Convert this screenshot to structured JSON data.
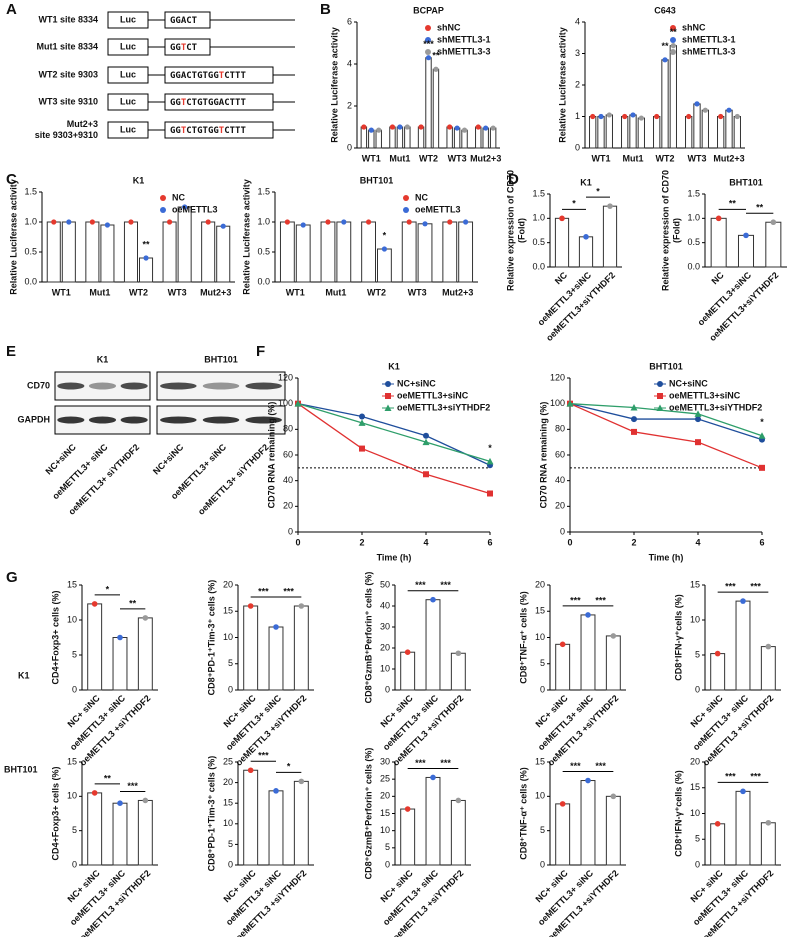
{
  "panel_labels": [
    "A",
    "B",
    "C",
    "D",
    "E",
    "F",
    "G"
  ],
  "constructs": {
    "box": "Luc",
    "highlight_color": "#e5392e",
    "rows": [
      {
        "label": [
          "WT1 site 8334"
        ],
        "sequence": [
          "GGACT"
        ],
        "mutated": []
      },
      {
        "label": [
          "Mut1 site 8334"
        ],
        "sequence": [
          "GG",
          "T",
          "CT"
        ],
        "mutated": [
          1
        ]
      },
      {
        "label": [
          "WT2 site 9303"
        ],
        "sequence": [
          "GGACTGTGG",
          "T",
          "CTTT"
        ],
        "mutated": [
          1
        ]
      },
      {
        "label": [
          "WT3 site 9310"
        ],
        "sequence": [
          "GG",
          "T",
          "CTGTGGACTTT"
        ],
        "mutated": [
          1
        ]
      },
      {
        "label": [
          "Mut2+3",
          "site 9303+9310"
        ],
        "sequence": [
          "GG",
          "T",
          "CTGTGG",
          "T",
          "CTTT"
        ],
        "mutated": [
          1,
          3
        ]
      }
    ]
  },
  "western_blot": {
    "titles": [
      "K1",
      "BHT101"
    ],
    "rows": [
      "CD70",
      "GAPDH"
    ],
    "lanes": [
      "NC+siNC",
      "oeMETTL3+ siNC",
      "oeMETTL3+ siYTHDF2"
    ]
  },
  "row_labels": [
    "K1",
    "BHT101"
  ],
  "chart_data": [
    {
      "type": "bar",
      "title": "BCPAP",
      "ylabel": [
        "Relative Luciferase activity"
      ],
      "categories": [
        "WT1",
        "Mut1",
        "WT2",
        "WT3",
        "Mut2+3"
      ],
      "series": [
        {
          "name": "shNC",
          "color": "#e5392e",
          "values": [
            1.0,
            1.0,
            1.0,
            1.0,
            1.0
          ]
        },
        {
          "name": "shMETTL3-1",
          "color": "#3b6bd6",
          "values": [
            0.85,
            1.0,
            4.3,
            0.95,
            0.95
          ]
        },
        {
          "name": "shMETTL3-3",
          "color": "#9a9a9a",
          "values": [
            0.85,
            1.0,
            3.75,
            0.85,
            0.95
          ]
        }
      ],
      "ylim": [
        0,
        6
      ],
      "yticks": [
        0,
        2,
        4,
        6
      ],
      "stars": [
        {
          "text": "***",
          "category": 2,
          "series": 1
        },
        {
          "text": "**",
          "category": 2,
          "series": 2
        }
      ]
    },
    {
      "type": "bar",
      "title": "C643",
      "ylabel": [
        "Relative Luciferase activity"
      ],
      "categories": [
        "WT1",
        "Mut1",
        "WT2",
        "WT3",
        "Mut2+3"
      ],
      "series": [
        {
          "name": "shNC",
          "color": "#e5392e",
          "values": [
            1.0,
            1.0,
            1.0,
            1.0,
            1.0
          ]
        },
        {
          "name": "shMETTL3-1",
          "color": "#3b6bd6",
          "values": [
            1.0,
            1.05,
            2.8,
            1.4,
            1.2
          ]
        },
        {
          "name": "shMETTL3-3",
          "color": "#9a9a9a",
          "values": [
            1.05,
            0.95,
            3.25,
            1.2,
            1.0
          ]
        }
      ],
      "ylim": [
        0,
        4
      ],
      "yticks": [
        0,
        1,
        2,
        3,
        4
      ],
      "stars": [
        {
          "text": "**",
          "category": 2,
          "series": 1
        },
        {
          "text": "**",
          "category": 2,
          "series": 2
        }
      ]
    },
    {
      "type": "bar",
      "title": "K1",
      "ylabel": [
        "Relative Luciferase activity"
      ],
      "categories": [
        "WT1",
        "Mut1",
        "WT2",
        "WT3",
        "Mut2+3"
      ],
      "series": [
        {
          "name": "NC",
          "color": "#e5392e",
          "values": [
            1.0,
            1.0,
            1.0,
            1.0,
            1.0
          ]
        },
        {
          "name": "oeMETTL3",
          "color": "#3b6bd6",
          "values": [
            1.0,
            0.95,
            0.4,
            1.25,
            0.93
          ]
        }
      ],
      "ylim": [
        0,
        1.5
      ],
      "yticks": [
        {
          "value": 0,
          "label": "0.0"
        },
        {
          "value": 0.5,
          "label": "0.5"
        },
        {
          "value": 1,
          "label": "1.0"
        },
        {
          "value": 1.5,
          "label": "1.5"
        }
      ],
      "stars": [
        {
          "text": "**",
          "category": 2,
          "series": 1
        }
      ]
    },
    {
      "type": "bar",
      "title": "BHT101",
      "ylabel": [
        "Relative Luciferase activity"
      ],
      "categories": [
        "WT1",
        "Mut1",
        "WT2",
        "WT3",
        "Mut2+3"
      ],
      "series": [
        {
          "name": "NC",
          "color": "#e5392e",
          "values": [
            1.0,
            1.0,
            1.0,
            1.0,
            1.0
          ]
        },
        {
          "name": "oeMETTL3",
          "color": "#3b6bd6",
          "values": [
            0.95,
            1.0,
            0.55,
            0.97,
            1.0
          ]
        }
      ],
      "ylim": [
        0,
        1.5
      ],
      "yticks": [
        {
          "value": 0,
          "label": "0.0"
        },
        {
          "value": 0.5,
          "label": "0.5"
        },
        {
          "value": 1,
          "label": "1.0"
        },
        {
          "value": 1.5,
          "label": "1.5"
        }
      ],
      "stars": [
        {
          "text": "*",
          "category": 2,
          "series": 1
        }
      ]
    },
    {
      "type": "bar",
      "title": "K1",
      "ylabel": [
        "Relative expression of CD70",
        "(Fold)"
      ],
      "categories": [
        "NC",
        "oeMETTL3+siNC",
        "oeMETTL3+siYTHDF2"
      ],
      "values": [
        1.0,
        0.62,
        1.25
      ],
      "colors": [
        "#e5392e",
        "#3b6bd6",
        "#9a9a9a"
      ],
      "ylim": [
        0,
        1.5
      ],
      "yticks": [
        {
          "value": 0,
          "label": "0.0"
        },
        {
          "value": 0.5,
          "label": "0.5"
        },
        {
          "value": 1,
          "label": "1.0"
        },
        {
          "value": 1.5,
          "label": "1.5"
        }
      ],
      "brackets": [
        {
          "text": "*",
          "from": 0,
          "to": 1
        },
        {
          "text": "*",
          "from": 1,
          "to": 2
        }
      ]
    },
    {
      "type": "bar",
      "title": "BHT101",
      "ylabel": [
        "Relative expression of CD70",
        "(Fold)"
      ],
      "categories": [
        "NC",
        "oeMETTL3+siNC",
        "oeMETTL3+siYTHDF2"
      ],
      "values": [
        1.0,
        0.65,
        0.92
      ],
      "colors": [
        "#e5392e",
        "#3b6bd6",
        "#9a9a9a"
      ],
      "ylim": [
        0,
        1.5
      ],
      "yticks": [
        {
          "value": 0,
          "label": "0.0"
        },
        {
          "value": 0.5,
          "label": "0.5"
        },
        {
          "value": 1,
          "label": "1.0"
        },
        {
          "value": 1.5,
          "label": "1.5"
        }
      ],
      "brackets": [
        {
          "text": "**",
          "from": 0,
          "to": 1
        },
        {
          "text": "**",
          "from": 1,
          "to": 2
        }
      ]
    },
    {
      "type": "line",
      "title": "K1",
      "xlabel": "Time (h)",
      "ylabel": [
        "CD70 RNA remaining (%)"
      ],
      "x": [
        0,
        2,
        4,
        6
      ],
      "series": [
        {
          "name": "NC+siNC",
          "color": "#1f4e9c",
          "values": [
            100,
            90,
            75,
            52
          ]
        },
        {
          "name": "oeMETTL3+siNC",
          "color": "#e03131",
          "values": [
            100,
            65,
            45,
            30
          ]
        },
        {
          "name": "oeMETTL3+siYTHDF2",
          "color": "#2e9e6a",
          "values": [
            100,
            85,
            70,
            55
          ]
        }
      ],
      "xlim": [
        0,
        6
      ],
      "xticks": [
        0,
        2,
        4,
        6
      ],
      "ylim": [
        0,
        120
      ],
      "yticks": [
        0,
        20,
        40,
        60,
        80,
        100,
        120
      ],
      "reference_line": 50,
      "stars": [
        {
          "text": "*",
          "x": 6
        }
      ]
    },
    {
      "type": "line",
      "title": "BHT101",
      "xlabel": "Time (h)",
      "ylabel": [
        "CD70 RNA remaining (%)"
      ],
      "x": [
        0,
        2,
        4,
        6
      ],
      "series": [
        {
          "name": "NC+siNC",
          "color": "#1f4e9c",
          "values": [
            100,
            88,
            88,
            72
          ]
        },
        {
          "name": "oeMETTL3+siNC",
          "color": "#e03131",
          "values": [
            100,
            78,
            70,
            50
          ]
        },
        {
          "name": "oeMETTL3+siYTHDF2",
          "color": "#2e9e6a",
          "values": [
            100,
            97,
            92,
            75
          ]
        }
      ],
      "xlim": [
        0,
        6
      ],
      "xticks": [
        0,
        2,
        4,
        6
      ],
      "ylim": [
        0,
        120
      ],
      "yticks": [
        0,
        20,
        40,
        60,
        80,
        100,
        120
      ],
      "reference_line": 50,
      "stars": [
        {
          "text": "*",
          "x": 6
        }
      ]
    },
    {
      "type": "bar",
      "ylabel": [
        "CD4+Foxp3+ cells (%)"
      ],
      "categories": [
        "NC+ siNC",
        "oeMETTL3+ siNC",
        "oeMETTL3 +siYTHDF2"
      ],
      "values": [
        12.3,
        7.5,
        10.3
      ],
      "colors": [
        "#e5392e",
        "#3b6bd6",
        "#9a9a9a"
      ],
      "ylim": [
        0,
        15
      ],
      "yticks": [
        0,
        5,
        10,
        15
      ],
      "brackets": [
        {
          "text": "*",
          "from": 0,
          "to": 1
        },
        {
          "text": "**",
          "from": 1,
          "to": 2
        }
      ]
    },
    {
      "type": "bar",
      "ylabel": [
        "CD8⁺PD-1⁺Tim-3⁺ cells (%)"
      ],
      "categories": [
        "NC+ siNC",
        "oeMETTL3+ siNC",
        "oeMETTL3 +siYTHDF2"
      ],
      "values": [
        16,
        12,
        16
      ],
      "colors": [
        "#e5392e",
        "#3b6bd6",
        "#9a9a9a"
      ],
      "ylim": [
        0,
        20
      ],
      "yticks": [
        0,
        5,
        10,
        15,
        20
      ],
      "brackets": [
        {
          "text": "***",
          "from": 0,
          "to": 1
        },
        {
          "text": "***",
          "from": 1,
          "to": 2
        }
      ]
    },
    {
      "type": "bar",
      "ylabel": [
        "CD8⁺GzmB⁺Perforin⁺ cells (%)"
      ],
      "categories": [
        "NC+ siNC",
        "oeMETTL3+ siNC",
        "oeMETTL3 +siYTHDF2"
      ],
      "values": [
        18,
        43,
        17.5
      ],
      "colors": [
        "#e5392e",
        "#3b6bd6",
        "#9a9a9a"
      ],
      "ylim": [
        0,
        50
      ],
      "yticks": [
        0,
        10,
        20,
        30,
        40,
        50
      ],
      "brackets": [
        {
          "text": "***",
          "from": 0,
          "to": 1
        },
        {
          "text": "***",
          "from": 1,
          "to": 2
        }
      ]
    },
    {
      "type": "bar",
      "ylabel": [
        "CD8⁺TNF-α⁺ cells (%)"
      ],
      "categories": [
        "NC+ siNC",
        "oeMETTL3+ siNC",
        "oeMETTL3 +siYTHDF2"
      ],
      "values": [
        8.7,
        14.3,
        10.3
      ],
      "colors": [
        "#e5392e",
        "#3b6bd6",
        "#9a9a9a"
      ],
      "ylim": [
        0,
        20
      ],
      "yticks": [
        0,
        5,
        10,
        15,
        20
      ],
      "brackets": [
        {
          "text": "***",
          "from": 0,
          "to": 1
        },
        {
          "text": "***",
          "from": 1,
          "to": 2
        }
      ]
    },
    {
      "type": "bar",
      "ylabel": [
        "CD8⁺IFN-γ⁺cells (%)"
      ],
      "categories": [
        "NC+ siNC",
        "oeMETTL3+ siNC",
        "oeMETTL3 +siYTHDF2"
      ],
      "values": [
        5.2,
        12.7,
        6.2
      ],
      "colors": [
        "#e5392e",
        "#3b6bd6",
        "#9a9a9a"
      ],
      "ylim": [
        0,
        15
      ],
      "yticks": [
        0,
        5,
        10,
        15
      ],
      "brackets": [
        {
          "text": "***",
          "from": 0,
          "to": 1
        },
        {
          "text": "***",
          "from": 1,
          "to": 2
        }
      ]
    },
    {
      "type": "bar",
      "ylabel": [
        "CD4+Foxp3+ cells (%)"
      ],
      "categories": [
        "NC+ siNC",
        "oeMETTL3+ siNC",
        "oeMETTL3 +siYTHDF2"
      ],
      "values": [
        10.5,
        9,
        9.4
      ],
      "colors": [
        "#e5392e",
        "#3b6bd6",
        "#9a9a9a"
      ],
      "ylim": [
        0,
        15
      ],
      "yticks": [
        0,
        5,
        10,
        15
      ],
      "brackets": [
        {
          "text": "**",
          "from": 0,
          "to": 1
        },
        {
          "text": "***",
          "from": 1,
          "to": 2
        }
      ]
    },
    {
      "type": "bar",
      "ylabel": [
        "CD8⁺PD-1⁺Tim-3⁺ cells (%)"
      ],
      "categories": [
        "NC+ siNC",
        "oeMETTL3+ siNC",
        "oeMETTL3 +siYTHDF2"
      ],
      "values": [
        23,
        18,
        20.3
      ],
      "colors": [
        "#e5392e",
        "#3b6bd6",
        "#9a9a9a"
      ],
      "ylim": [
        0,
        25
      ],
      "yticks": [
        0,
        5,
        10,
        15,
        20,
        25
      ],
      "brackets": [
        {
          "text": "***",
          "from": 0,
          "to": 1
        },
        {
          "text": "*",
          "from": 1,
          "to": 2
        }
      ]
    },
    {
      "type": "bar",
      "ylabel": [
        "CD8⁺GzmB⁺Perforin⁺ cells (%)"
      ],
      "categories": [
        "NC+ siNC",
        "oeMETTL3+ siNC",
        "oeMETTL3 +siYTHDF2"
      ],
      "values": [
        16.3,
        25.5,
        18.8
      ],
      "colors": [
        "#e5392e",
        "#3b6bd6",
        "#9a9a9a"
      ],
      "ylim": [
        0,
        30
      ],
      "yticks": [
        0,
        5,
        10,
        15,
        20,
        25,
        30
      ],
      "brackets": [
        {
          "text": "***",
          "from": 0,
          "to": 1
        },
        {
          "text": "***",
          "from": 1,
          "to": 2
        }
      ]
    },
    {
      "type": "bar",
      "ylabel": [
        "CD8⁺TNF-α⁺ cells (%)"
      ],
      "categories": [
        "NC+ siNC",
        "oeMETTL3+ siNC",
        "oeMETTL3 +siYTHDF2"
      ],
      "values": [
        8.9,
        12.3,
        10
      ],
      "colors": [
        "#e5392e",
        "#3b6bd6",
        "#9a9a9a"
      ],
      "ylim": [
        0,
        15
      ],
      "yticks": [
        0,
        5,
        10,
        15
      ],
      "brackets": [
        {
          "text": "***",
          "from": 0,
          "to": 1
        },
        {
          "text": "***",
          "from": 1,
          "to": 2
        }
      ]
    },
    {
      "type": "bar",
      "ylabel": [
        "CD8⁺IFN-γ⁺cells (%)"
      ],
      "categories": [
        "NC+ siNC",
        "oeMETTL3+ siNC",
        "oeMETTL3 +siYTHDF2"
      ],
      "values": [
        8,
        14.3,
        8.2
      ],
      "colors": [
        "#e5392e",
        "#3b6bd6",
        "#9a9a9a"
      ],
      "ylim": [
        0,
        20
      ],
      "yticks": [
        0,
        5,
        10,
        15,
        20
      ],
      "brackets": [
        {
          "text": "***",
          "from": 0,
          "to": 1
        },
        {
          "text": "***",
          "from": 1,
          "to": 2
        }
      ]
    }
  ]
}
